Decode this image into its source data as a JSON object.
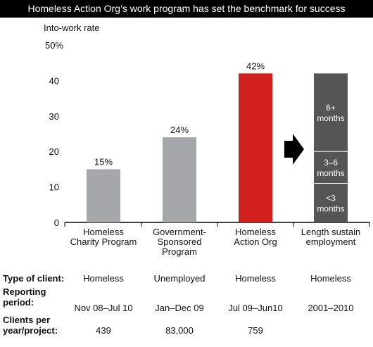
{
  "title": "Homeless Action Org’s work program has set the benchmark for success",
  "chart_data": {
    "type": "bar",
    "ylabel": "Into-work rate",
    "ylim": [
      0,
      50
    ],
    "yticks": [
      "0",
      "10",
      "20",
      "30",
      "40",
      "50%"
    ],
    "categories": [
      [
        "Homeless",
        "Charity Program"
      ],
      [
        "Government-",
        "Sponsored",
        "Program"
      ],
      [
        "Homeless",
        "Action Org"
      ],
      [
        "Length sustain",
        "employment"
      ]
    ],
    "bars": [
      {
        "value": 15,
        "label": "15%",
        "color": "#a6a7aa"
      },
      {
        "value": 24,
        "label": "24%",
        "color": "#a6a7aa"
      },
      {
        "value": 42,
        "label": "42%",
        "color": "#d21f1f"
      }
    ],
    "stacked": {
      "total": 42,
      "color": "#555555",
      "segments": [
        {
          "value": 11,
          "label": [
            "<3",
            "months"
          ]
        },
        {
          "value": 9,
          "label": [
            "3–6",
            "months"
          ]
        },
        {
          "value": 22,
          "label": [
            "6+",
            "months"
          ]
        }
      ]
    },
    "arrow_icon": "right-arrow-icon"
  },
  "table": {
    "rows": [
      {
        "label": [
          "Type of client:"
        ],
        "cells": [
          "Homeless",
          "Unemployed",
          "Homeless",
          "Homeless"
        ]
      },
      {
        "label": [
          "Reporting",
          "period:"
        ],
        "cells": [
          "Nov 08–Jul 10",
          "Jan–Dec 09",
          "Jul 09–Jun10",
          "2001–2010"
        ]
      },
      {
        "label": [
          "Clients per",
          "year/project:"
        ],
        "cells": [
          "439",
          "83,000",
          "759",
          ""
        ]
      }
    ]
  }
}
